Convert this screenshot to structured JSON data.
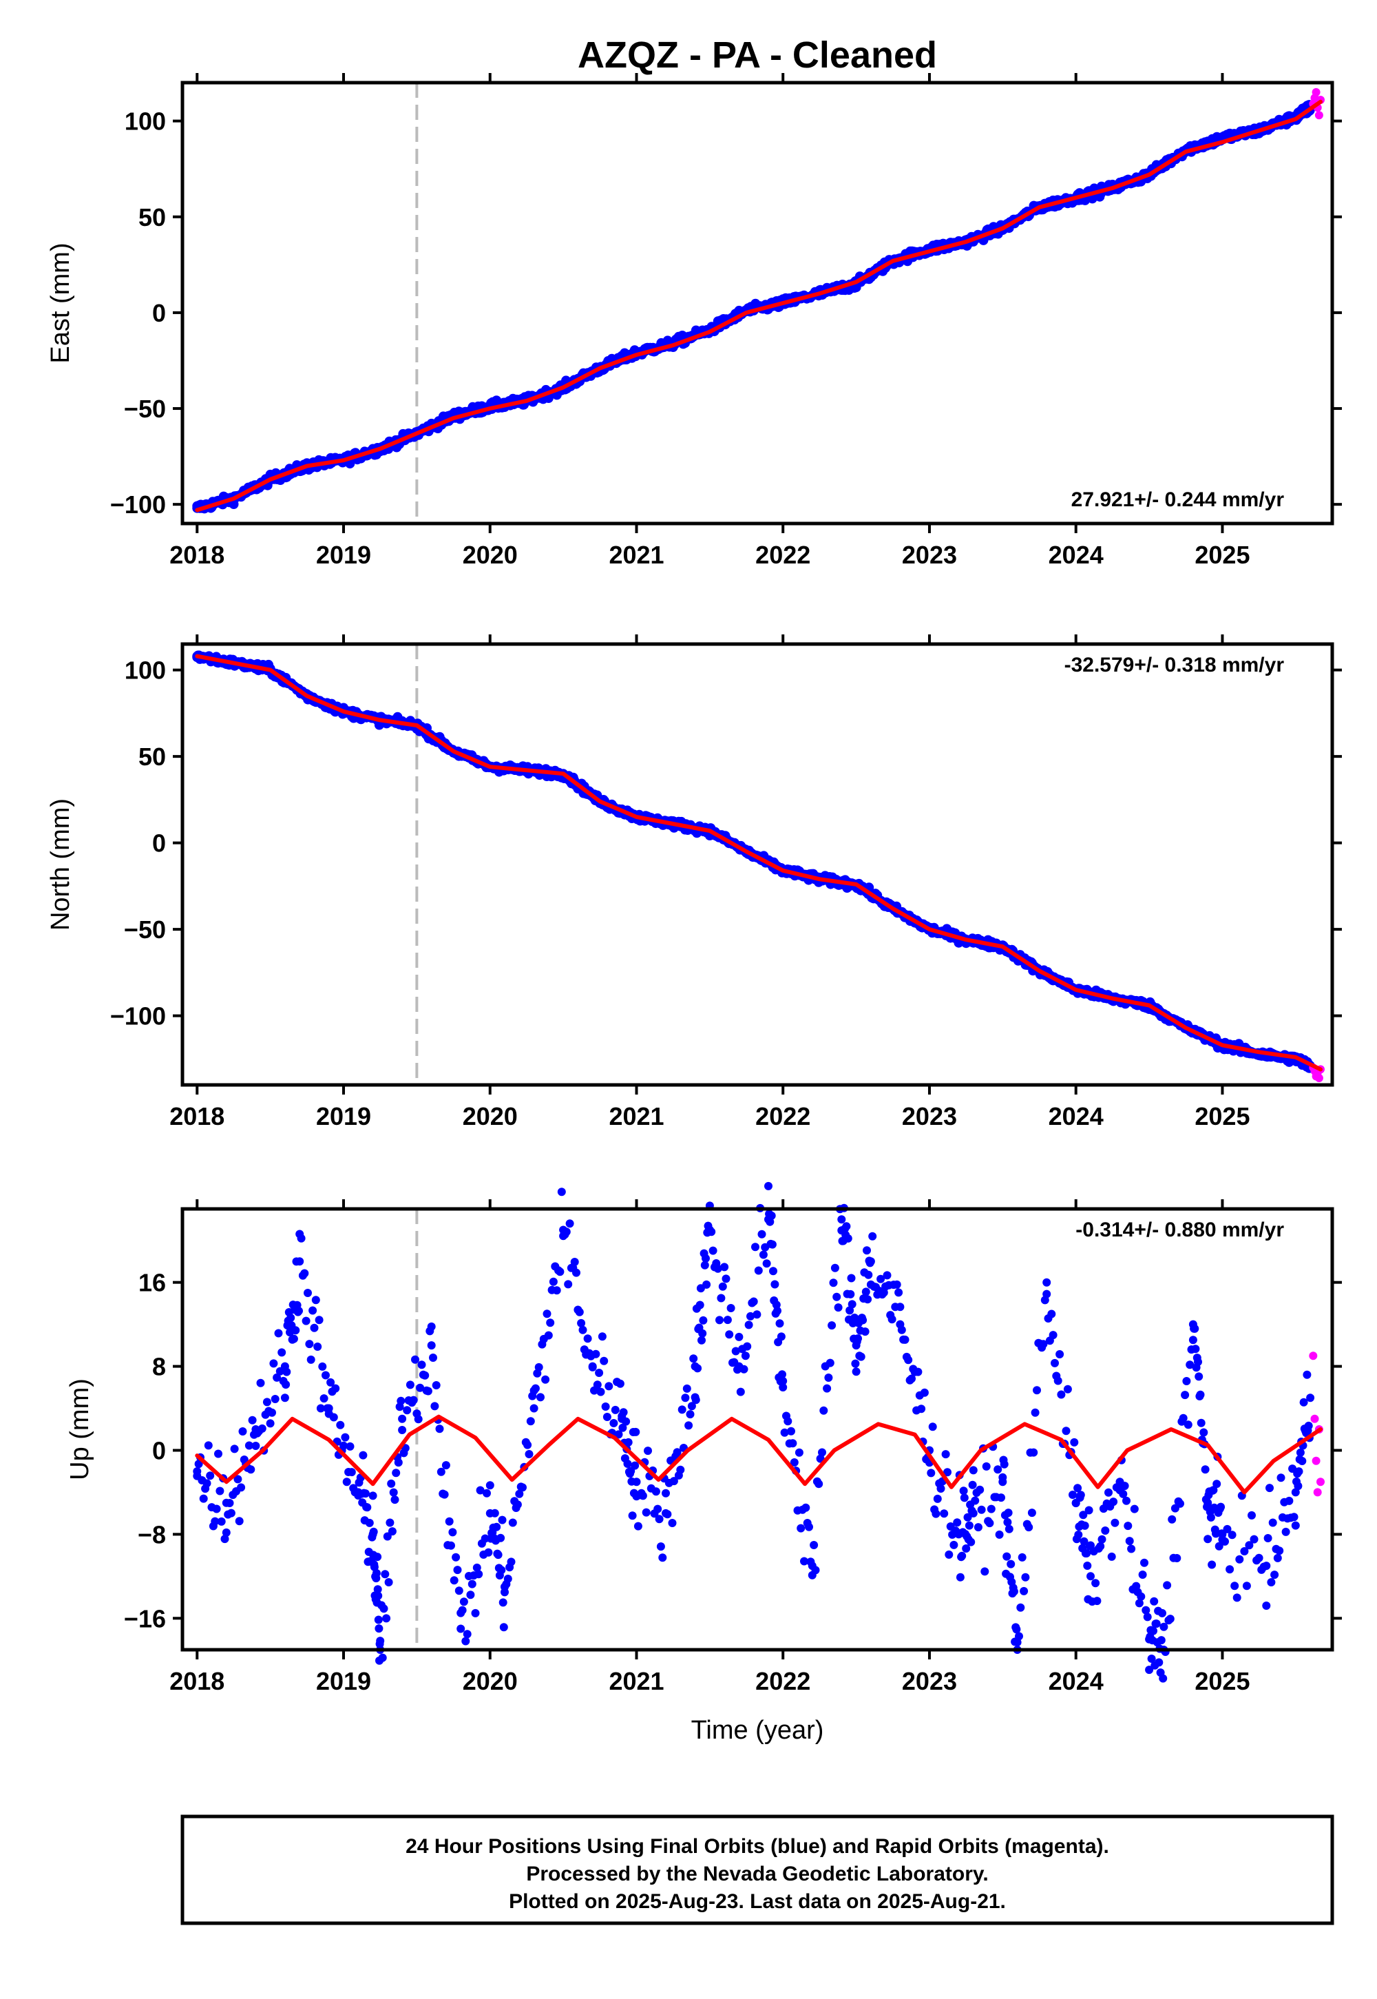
{
  "figure": {
    "title": "AZQZ  - PA - Cleaned",
    "xlabel": "Time (year)",
    "footer": [
      "24 Hour Positions Using Final Orbits (blue) and Rapid Orbits (magenta).",
      "Processed by the Nevada Geodetic Laboratory.",
      "Plotted on 2025-Aug-23. Last data on 2025-Aug-21."
    ]
  },
  "colors": {
    "final_orbits": "#0000ff",
    "rapid_orbits": "#ff00ff",
    "fit": "#ff0000",
    "marker_line": "#bbbbbb",
    "frame": "#000000"
  },
  "chart_data": [
    {
      "type": "scatter",
      "ylabel": "East (mm)",
      "rate": "27.921+/- 0.244 mm/yr",
      "rate_position": "bottom-right",
      "xlim": [
        2017.9,
        2025.75
      ],
      "ylim": [
        -110,
        120
      ],
      "xticks": [
        "2018",
        "2019",
        "2020",
        "2021",
        "2022",
        "2023",
        "2024",
        "2025"
      ],
      "yticks": [
        100,
        50,
        0,
        -50,
        -100
      ],
      "ytick_labels": [
        "100",
        "50",
        "0",
        "−50",
        "−100"
      ],
      "marker_x": 2019.5,
      "series": [
        {
          "name": "Final Orbits",
          "values": [
            [
              2018.0,
              -102
            ],
            [
              2018.25,
              -97
            ],
            [
              2018.5,
              -87
            ],
            [
              2018.75,
              -80
            ],
            [
              2019.0,
              -77
            ],
            [
              2019.25,
              -71
            ],
            [
              2019.5,
              -63
            ],
            [
              2019.75,
              -54
            ],
            [
              2020.0,
              -49
            ],
            [
              2020.25,
              -46
            ],
            [
              2020.5,
              -39
            ],
            [
              2020.75,
              -29
            ],
            [
              2021.0,
              -21
            ],
            [
              2021.25,
              -16
            ],
            [
              2021.5,
              -9
            ],
            [
              2021.75,
              1
            ],
            [
              2022.0,
              5
            ],
            [
              2022.25,
              10
            ],
            [
              2022.5,
              15
            ],
            [
              2022.75,
              27
            ],
            [
              2023.0,
              33
            ],
            [
              2023.25,
              37
            ],
            [
              2023.5,
              44
            ],
            [
              2023.75,
              55
            ],
            [
              2024.0,
              60
            ],
            [
              2024.25,
              65
            ],
            [
              2024.5,
              72
            ],
            [
              2024.75,
              85
            ],
            [
              2025.0,
              91
            ],
            [
              2025.25,
              95
            ],
            [
              2025.5,
              102
            ],
            [
              2025.6,
              107
            ]
          ]
        },
        {
          "name": "Rapid Orbits",
          "values": [
            [
              2025.62,
              109
            ],
            [
              2025.63,
              112
            ],
            [
              2025.64,
              115
            ],
            [
              2025.65,
              107
            ],
            [
              2025.66,
              103
            ],
            [
              2025.67,
              111
            ]
          ]
        },
        {
          "name": "Fit",
          "values": [
            [
              2018.0,
              -103
            ],
            [
              2018.25,
              -97
            ],
            [
              2018.5,
              -87
            ],
            [
              2018.75,
              -80
            ],
            [
              2019.0,
              -77
            ],
            [
              2019.25,
              -71
            ],
            [
              2019.5,
              -63
            ],
            [
              2019.75,
              -55
            ],
            [
              2020.0,
              -50
            ],
            [
              2020.25,
              -46
            ],
            [
              2020.5,
              -39
            ],
            [
              2020.75,
              -29
            ],
            [
              2021.0,
              -22
            ],
            [
              2021.25,
              -17
            ],
            [
              2021.5,
              -10
            ],
            [
              2021.75,
              0
            ],
            [
              2022.0,
              5
            ],
            [
              2022.25,
              10
            ],
            [
              2022.5,
              16
            ],
            [
              2022.75,
              27
            ],
            [
              2023.0,
              32
            ],
            [
              2023.25,
              37
            ],
            [
              2023.5,
              44
            ],
            [
              2023.75,
              55
            ],
            [
              2024.0,
              60
            ],
            [
              2024.25,
              65
            ],
            [
              2024.5,
              72
            ],
            [
              2024.75,
              84
            ],
            [
              2025.0,
              89
            ],
            [
              2025.25,
              95
            ],
            [
              2025.5,
              101
            ],
            [
              2025.67,
              110
            ]
          ]
        }
      ]
    },
    {
      "type": "scatter",
      "ylabel": "North (mm)",
      "rate": "-32.579+/- 0.318 mm/yr",
      "rate_position": "top-right",
      "xlim": [
        2017.9,
        2025.75
      ],
      "ylim": [
        -140,
        115
      ],
      "xticks": [
        "2018",
        "2019",
        "2020",
        "2021",
        "2022",
        "2023",
        "2024",
        "2025"
      ],
      "yticks": [
        100,
        50,
        0,
        -50,
        -100
      ],
      "ytick_labels": [
        "100",
        "50",
        "0",
        "−50",
        "−100"
      ],
      "marker_x": 2019.5,
      "series": [
        {
          "name": "Final Orbits",
          "values": [
            [
              2018.0,
              108
            ],
            [
              2018.25,
              104
            ],
            [
              2018.5,
              100
            ],
            [
              2018.75,
              85
            ],
            [
              2019.0,
              76
            ],
            [
              2019.25,
              71
            ],
            [
              2019.5,
              68
            ],
            [
              2019.75,
              53
            ],
            [
              2020.0,
              44
            ],
            [
              2020.25,
              42
            ],
            [
              2020.5,
              40
            ],
            [
              2020.75,
              24
            ],
            [
              2021.0,
              15
            ],
            [
              2021.25,
              11
            ],
            [
              2021.5,
              7
            ],
            [
              2021.75,
              -5
            ],
            [
              2022.0,
              -16
            ],
            [
              2022.25,
              -21
            ],
            [
              2022.5,
              -24
            ],
            [
              2022.75,
              -38
            ],
            [
              2023.0,
              -50
            ],
            [
              2023.25,
              -56
            ],
            [
              2023.5,
              -60
            ],
            [
              2023.75,
              -74
            ],
            [
              2024.0,
              -85
            ],
            [
              2024.25,
              -90
            ],
            [
              2024.5,
              -94
            ],
            [
              2024.75,
              -107
            ],
            [
              2025.0,
              -117
            ],
            [
              2025.25,
              -122
            ],
            [
              2025.5,
              -125
            ],
            [
              2025.6,
              -129
            ]
          ]
        },
        {
          "name": "Rapid Orbits",
          "values": [
            [
              2025.62,
              -130
            ],
            [
              2025.63,
              -132
            ],
            [
              2025.64,
              -135
            ],
            [
              2025.65,
              -133
            ],
            [
              2025.66,
              -136
            ],
            [
              2025.67,
              -131
            ]
          ]
        },
        {
          "name": "Fit",
          "values": [
            [
              2018.0,
              108
            ],
            [
              2018.25,
              104
            ],
            [
              2018.5,
              100
            ],
            [
              2018.75,
              85
            ],
            [
              2019.0,
              76
            ],
            [
              2019.25,
              71
            ],
            [
              2019.5,
              68
            ],
            [
              2019.75,
              53
            ],
            [
              2020.0,
              44
            ],
            [
              2020.25,
              42
            ],
            [
              2020.5,
              40
            ],
            [
              2020.75,
              24
            ],
            [
              2021.0,
              15
            ],
            [
              2021.25,
              11
            ],
            [
              2021.5,
              7
            ],
            [
              2021.75,
              -5
            ],
            [
              2022.0,
              -16
            ],
            [
              2022.25,
              -21
            ],
            [
              2022.5,
              -24
            ],
            [
              2022.75,
              -38
            ],
            [
              2023.0,
              -50
            ],
            [
              2023.25,
              -56
            ],
            [
              2023.5,
              -60
            ],
            [
              2023.75,
              -74
            ],
            [
              2024.0,
              -85
            ],
            [
              2024.25,
              -90
            ],
            [
              2024.5,
              -94
            ],
            [
              2024.75,
              -107
            ],
            [
              2025.0,
              -117
            ],
            [
              2025.25,
              -121
            ],
            [
              2025.5,
              -124
            ],
            [
              2025.67,
              -131
            ]
          ]
        }
      ]
    },
    {
      "type": "scatter",
      "ylabel": "Up (mm)",
      "rate": "-0.314+/- 0.880 mm/yr",
      "rate_position": "top-right",
      "xlim": [
        2017.9,
        2025.75
      ],
      "ylim": [
        -19,
        23
      ],
      "xticks": [
        "2018",
        "2019",
        "2020",
        "2021",
        "2022",
        "2023",
        "2024",
        "2025"
      ],
      "xticks_with_label": true,
      "yticks": [
        16,
        8,
        0,
        -8,
        -16
      ],
      "ytick_labels": [
        "16",
        "8",
        "0",
        "−8",
        "−16"
      ],
      "marker_x": 2019.5,
      "series": [
        {
          "name": "Final Orbits",
          "values": [
            [
              2018.0,
              -2
            ],
            [
              2018.2,
              -5
            ],
            [
              2018.4,
              2
            ],
            [
              2018.6,
              8
            ],
            [
              2018.7,
              18
            ],
            [
              2018.9,
              4
            ],
            [
              2019.1,
              -4
            ],
            [
              2019.2,
              -8
            ],
            [
              2019.25,
              -19
            ],
            [
              2019.4,
              3
            ],
            [
              2019.6,
              10
            ],
            [
              2019.8,
              -17
            ],
            [
              2020.0,
              -6
            ],
            [
              2020.1,
              -13
            ],
            [
              2020.3,
              4
            ],
            [
              2020.5,
              21
            ],
            [
              2020.7,
              8
            ],
            [
              2020.9,
              3
            ],
            [
              2021.0,
              -3
            ],
            [
              2021.2,
              -6
            ],
            [
              2021.4,
              8
            ],
            [
              2021.5,
              21
            ],
            [
              2021.7,
              8
            ],
            [
              2021.9,
              22
            ],
            [
              2022.0,
              6
            ],
            [
              2022.2,
              -11
            ],
            [
              2022.4,
              22
            ],
            [
              2022.5,
              10
            ],
            [
              2022.6,
              18
            ],
            [
              2022.8,
              12
            ],
            [
              2023.0,
              0
            ],
            [
              2023.2,
              -8
            ],
            [
              2023.3,
              -6
            ],
            [
              2023.5,
              -3
            ],
            [
              2023.6,
              -19
            ],
            [
              2023.8,
              16
            ],
            [
              2024.0,
              -5
            ],
            [
              2024.1,
              -12
            ],
            [
              2024.3,
              -3
            ],
            [
              2024.5,
              -18
            ],
            [
              2024.6,
              -19
            ],
            [
              2024.8,
              12
            ],
            [
              2024.9,
              -5
            ],
            [
              2025.0,
              -8
            ],
            [
              2025.3,
              -11
            ],
            [
              2025.5,
              -4
            ],
            [
              2025.6,
              5
            ]
          ]
        },
        {
          "name": "Rapid Orbits",
          "values": [
            [
              2025.62,
              9
            ],
            [
              2025.63,
              3
            ],
            [
              2025.64,
              -1
            ],
            [
              2025.65,
              -4
            ],
            [
              2025.66,
              2
            ],
            [
              2025.67,
              -3
            ]
          ]
        },
        {
          "name": "Fit",
          "values": [
            [
              2018.0,
              -0.5
            ],
            [
              2018.2,
              -3
            ],
            [
              2018.45,
              0
            ],
            [
              2018.65,
              3
            ],
            [
              2018.9,
              1
            ],
            [
              2019.2,
              -3.2
            ],
            [
              2019.45,
              1.5
            ],
            [
              2019.65,
              3.2
            ],
            [
              2019.9,
              1.2
            ],
            [
              2020.15,
              -2.8
            ],
            [
              2020.4,
              0.5
            ],
            [
              2020.6,
              3
            ],
            [
              2020.85,
              1.2
            ],
            [
              2021.15,
              -2.8
            ],
            [
              2021.35,
              0
            ],
            [
              2021.65,
              3
            ],
            [
              2021.9,
              1
            ],
            [
              2022.15,
              -3.2
            ],
            [
              2022.35,
              0
            ],
            [
              2022.65,
              2.5
            ],
            [
              2022.9,
              1.5
            ],
            [
              2023.15,
              -3.5
            ],
            [
              2023.35,
              0
            ],
            [
              2023.65,
              2.5
            ],
            [
              2023.9,
              1
            ],
            [
              2024.15,
              -3.5
            ],
            [
              2024.35,
              0
            ],
            [
              2024.65,
              2
            ],
            [
              2024.9,
              0.5
            ],
            [
              2025.15,
              -4
            ],
            [
              2025.35,
              -1
            ],
            [
              2025.67,
              2
            ]
          ]
        }
      ]
    }
  ]
}
